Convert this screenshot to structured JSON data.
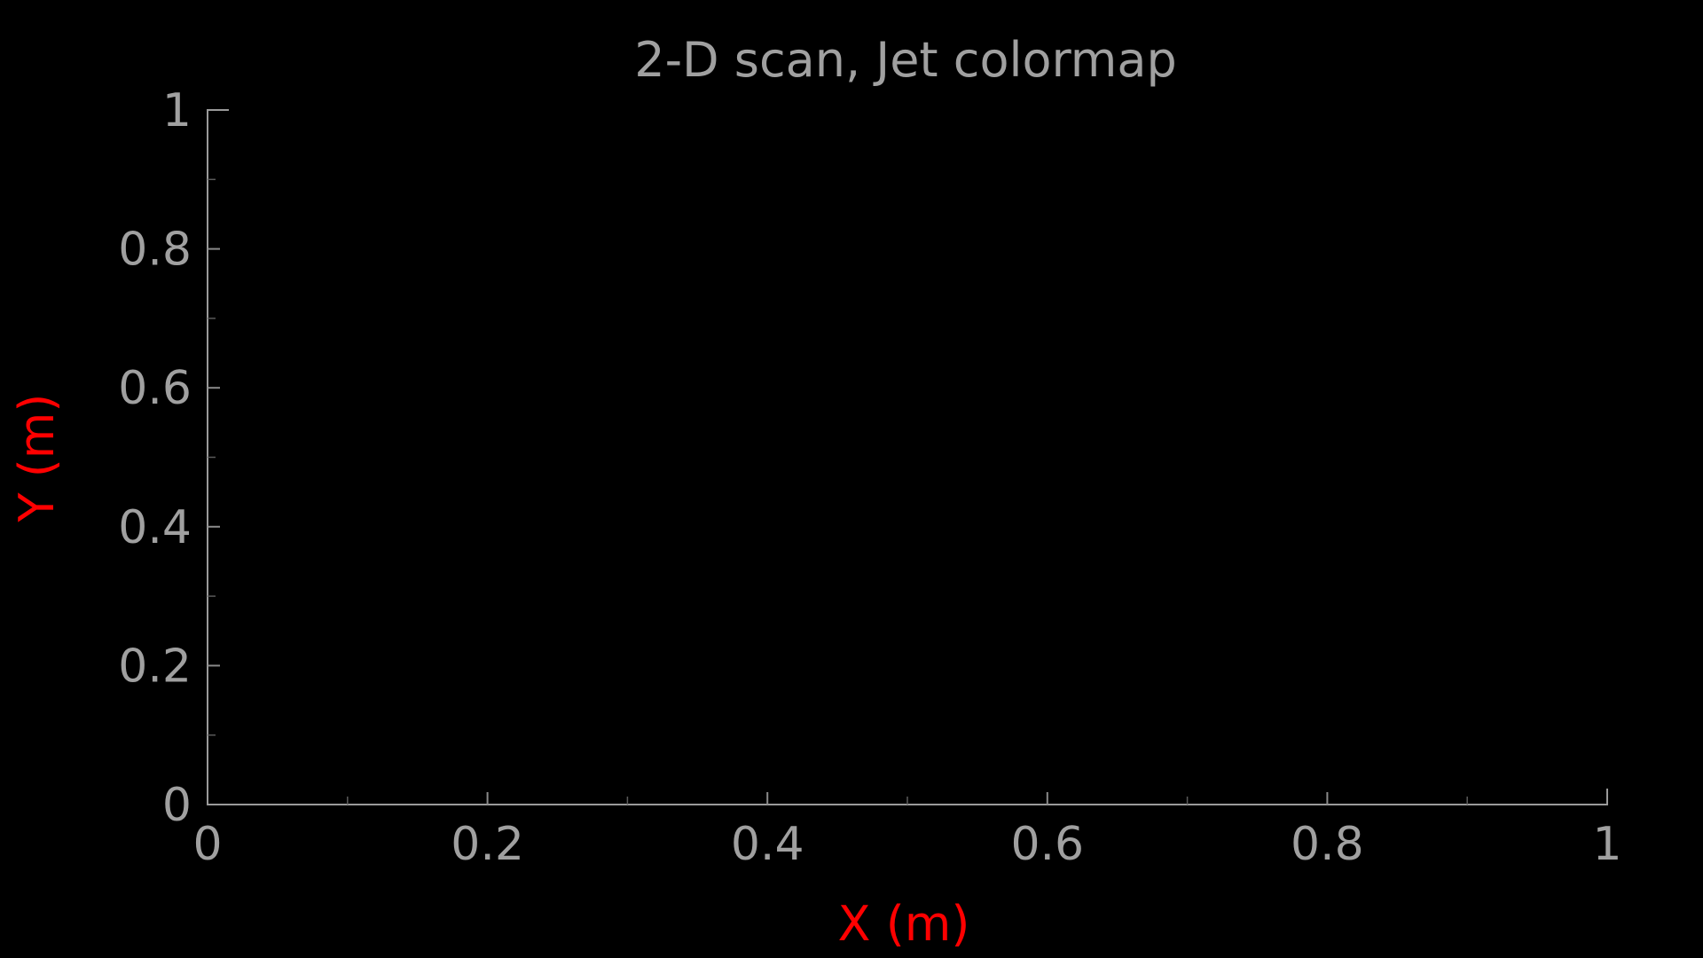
{
  "chart_data": {
    "type": "heatmap",
    "title": "2-D scan, Jet colormap",
    "xlabel": "X (m)",
    "ylabel": "Y (m)",
    "xlim": [
      0,
      1
    ],
    "ylim": [
      0,
      1
    ],
    "x_ticks": [
      "0",
      "0.2",
      "0.4",
      "0.6",
      "0.8",
      "1"
    ],
    "y_ticks": [
      "0",
      "0.2",
      "0.4",
      "0.6",
      "0.8",
      "1"
    ],
    "x_tick_values": [
      0,
      0.2,
      0.4,
      0.6,
      0.8,
      1
    ],
    "y_tick_values": [
      0,
      0.2,
      0.4,
      0.6,
      0.8,
      1
    ],
    "colormap": "jet",
    "values": [],
    "grid": false,
    "colors": {
      "background": "#000000",
      "axis": "#9a9a9a",
      "text": "#a0a0a0",
      "axis_label": "#ff0000"
    }
  }
}
